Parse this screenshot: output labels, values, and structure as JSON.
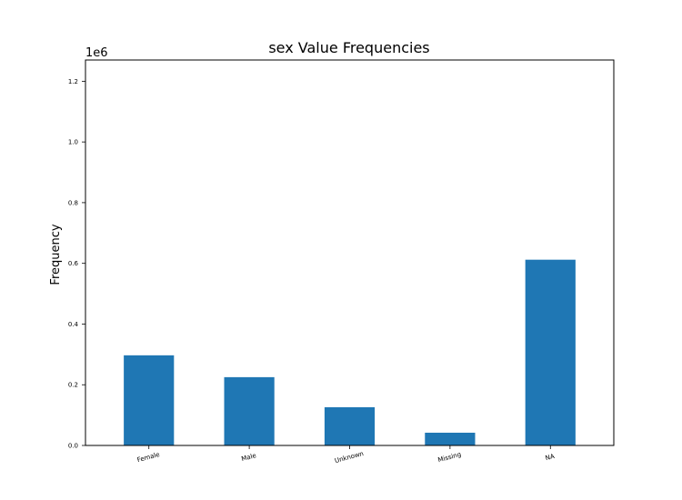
{
  "chart_data": {
    "type": "bar",
    "title": "sex Value Frequencies",
    "xlabel": "",
    "ylabel": "Frequency",
    "y_offset_label": "1e6",
    "categories": [
      "Female",
      "Male",
      "Unknown",
      "Missing",
      "NA"
    ],
    "values": [
      297000,
      225000,
      126000,
      42000,
      612000
    ],
    "ylim": [
      0,
      1270000
    ],
    "yticks": [
      0.0,
      0.2,
      0.4,
      0.6,
      0.8,
      1.0,
      1.2
    ],
    "ytick_labels": [
      "0.0",
      "0.2",
      "0.4",
      "0.6",
      "0.8",
      "1.0",
      "1.2"
    ],
    "bar_color": "#1f77b4",
    "grid": false,
    "legend": false
  }
}
